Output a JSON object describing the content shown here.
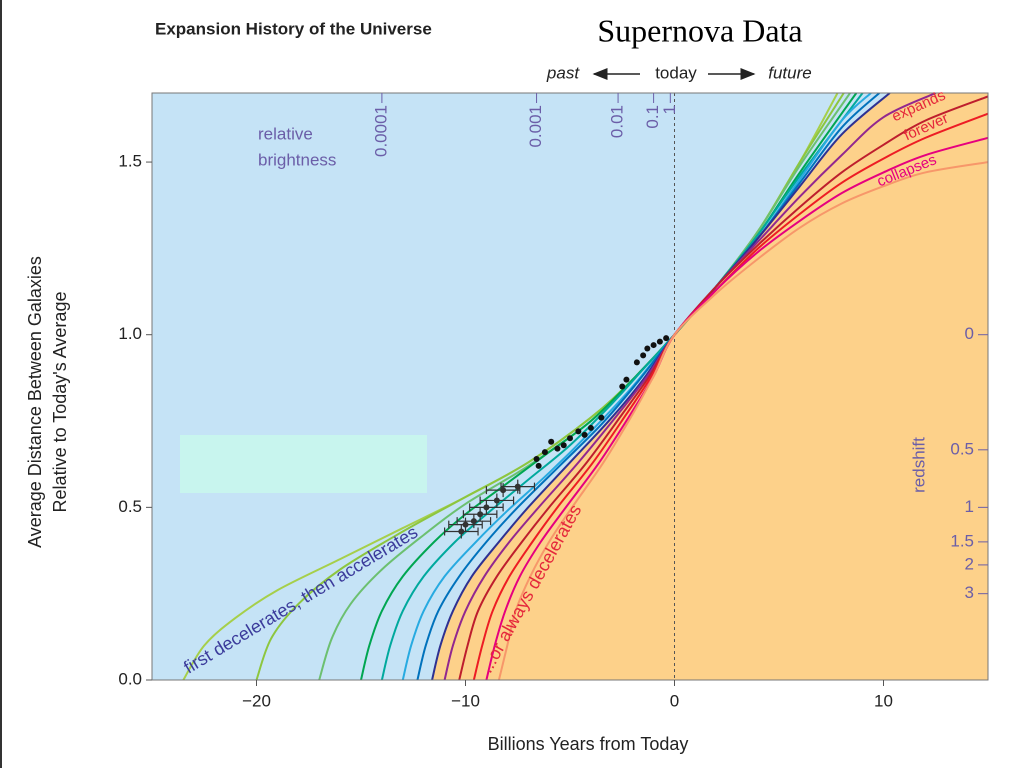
{
  "slide": {
    "title": "Supernova Data"
  },
  "chart_data": {
    "type": "line",
    "title": "Expansion History of the Universe",
    "xlabel": "Billions Years from Today",
    "ylabel": [
      "Average Distance Between Galaxies",
      "Relative to Today's Average"
    ],
    "xlim": [
      -25,
      15
    ],
    "ylim": [
      0,
      1.7
    ],
    "xticks": [
      {
        "value": -20,
        "label": "−20"
      },
      {
        "value": -10,
        "label": "−10"
      },
      0,
      10
    ],
    "yticks": [
      {
        "value": 0,
        "label": "0.0"
      },
      0.5,
      {
        "value": 1,
        "label": "1.0"
      },
      1.5
    ],
    "time_arrow": [
      "past",
      "today",
      "future"
    ],
    "annotations": {
      "accelerating": "first decelerates, then accelerates",
      "decelerating": "...or always decelerates",
      "expands": [
        "expands",
        "forever"
      ],
      "collapses": "collapses"
    },
    "brightness_axis": {
      "label": [
        "relative",
        "brightness"
      ],
      "ticks": [
        0.0001,
        0.001,
        0.01,
        0.1,
        1
      ],
      "tick_x": [
        -14,
        -6.6,
        -2.7,
        -1,
        -0.2
      ]
    },
    "redshift_axis": {
      "label": "redshift",
      "ticks": [
        0,
        0.5,
        1,
        1.5,
        2,
        3
      ]
    },
    "series": [
      {
        "color": "#a6cf4a",
        "x": [
          -23.5,
          -22.5,
          -21,
          -19,
          -16,
          -13,
          -10,
          -7,
          -4,
          -2,
          0,
          2,
          4,
          6,
          7.8
        ],
        "values": [
          0,
          0.1,
          0.18,
          0.26,
          0.35,
          0.44,
          0.53,
          0.63,
          0.76,
          0.87,
          1,
          1.14,
          1.3,
          1.5,
          1.7
        ]
      },
      {
        "color": "#8dc63f",
        "x": [
          -20,
          -19.3,
          -18,
          -16,
          -13,
          -10,
          -7,
          -4,
          -2,
          0,
          2,
          4,
          6,
          8.1
        ],
        "values": [
          0,
          0.12,
          0.22,
          0.32,
          0.43,
          0.53,
          0.63,
          0.76,
          0.87,
          1,
          1.14,
          1.3,
          1.5,
          1.7
        ]
      },
      {
        "color": "#6cc070",
        "x": [
          -17,
          -16.4,
          -15.5,
          -14,
          -12,
          -10,
          -7,
          -4,
          -2,
          0,
          2,
          4,
          6,
          8.4
        ],
        "values": [
          0,
          0.12,
          0.22,
          0.32,
          0.42,
          0.51,
          0.62,
          0.75,
          0.87,
          1,
          1.14,
          1.3,
          1.49,
          1.7
        ]
      },
      {
        "color": "#00a651",
        "x": [
          -15,
          -14.6,
          -14,
          -13,
          -11.5,
          -10,
          -8,
          -6,
          -4,
          -2,
          0,
          2,
          4,
          6,
          8.7
        ],
        "values": [
          0,
          0.1,
          0.2,
          0.3,
          0.4,
          0.48,
          0.57,
          0.66,
          0.75,
          0.87,
          1,
          1.14,
          1.29,
          1.47,
          1.7
        ]
      },
      {
        "color": "#00a99d",
        "x": [
          -14,
          -13.6,
          -13,
          -12,
          -10.5,
          -9,
          -7,
          -5,
          -3,
          -1.5,
          0,
          2,
          4,
          6,
          9
        ],
        "values": [
          0,
          0.1,
          0.2,
          0.3,
          0.4,
          0.48,
          0.58,
          0.68,
          0.8,
          0.9,
          1,
          1.14,
          1.29,
          1.46,
          1.7
        ]
      },
      {
        "color": "#27aae1",
        "x": [
          -13,
          -12.6,
          -12,
          -11,
          -9.5,
          -8,
          -6,
          -4,
          -2,
          0,
          2,
          4,
          6,
          8,
          9.4
        ],
        "values": [
          0,
          0.1,
          0.2,
          0.3,
          0.4,
          0.49,
          0.6,
          0.72,
          0.85,
          1,
          1.14,
          1.28,
          1.45,
          1.62,
          1.7
        ]
      },
      {
        "color": "#0072bc",
        "x": [
          -12.3,
          -11.9,
          -11.3,
          -10.3,
          -9,
          -7.5,
          -5.5,
          -3.5,
          -1.8,
          0,
          2,
          4,
          6,
          8,
          9.8
        ],
        "values": [
          0,
          0.1,
          0.2,
          0.3,
          0.4,
          0.5,
          0.62,
          0.74,
          0.86,
          1,
          1.14,
          1.28,
          1.44,
          1.6,
          1.7
        ]
      },
      {
        "color": "#2e3192",
        "x": [
          -11.6,
          -11.2,
          -10.6,
          -9.7,
          -8.4,
          -7,
          -5,
          -3,
          -1.5,
          0,
          2,
          4,
          6,
          8,
          10.3
        ],
        "values": [
          0,
          0.1,
          0.2,
          0.3,
          0.4,
          0.5,
          0.63,
          0.76,
          0.87,
          1,
          1.14,
          1.28,
          1.43,
          1.58,
          1.7
        ]
      },
      {
        "color": "#92278f",
        "x": [
          -11,
          -10.6,
          -10,
          -9.1,
          -7.9,
          -6.5,
          -4.6,
          -2.7,
          -1.3,
          0,
          2,
          4,
          6,
          8,
          10,
          12.5
        ],
        "values": [
          0,
          0.1,
          0.2,
          0.3,
          0.4,
          0.5,
          0.63,
          0.77,
          0.88,
          1,
          1.14,
          1.27,
          1.4,
          1.52,
          1.63,
          1.7
        ]
      },
      {
        "color": "#be1e2d",
        "x": [
          -10.3,
          -9.9,
          -9.4,
          -8.5,
          -7.3,
          -6,
          -4.2,
          -2.5,
          -1.2,
          0,
          2,
          4,
          6,
          8,
          10,
          12,
          15
        ],
        "values": [
          0,
          0.1,
          0.2,
          0.3,
          0.4,
          0.5,
          0.63,
          0.77,
          0.88,
          1,
          1.14,
          1.26,
          1.37,
          1.47,
          1.55,
          1.62,
          1.69
        ]
      },
      {
        "color": "#ed1c24",
        "x": [
          -9.6,
          -9.2,
          -8.7,
          -7.9,
          -6.8,
          -5.6,
          -3.9,
          -2.3,
          -1.1,
          0,
          2,
          4,
          6,
          8,
          10,
          12,
          15
        ],
        "values": [
          0,
          0.1,
          0.2,
          0.3,
          0.4,
          0.5,
          0.63,
          0.77,
          0.88,
          1,
          1.13,
          1.25,
          1.35,
          1.44,
          1.51,
          1.57,
          1.64
        ]
      },
      {
        "color": "#e6007e",
        "x": [
          -9,
          -8.6,
          -8.1,
          -7.4,
          -6.4,
          -5.2,
          -3.6,
          -2.1,
          -1,
          0,
          2,
          4,
          6,
          8,
          10,
          12,
          15
        ],
        "values": [
          0,
          0.1,
          0.2,
          0.3,
          0.4,
          0.5,
          0.63,
          0.77,
          0.88,
          1,
          1.13,
          1.24,
          1.33,
          1.41,
          1.47,
          1.52,
          1.57
        ]
      },
      {
        "color": "#f7976a",
        "x": [
          -8.4,
          -8,
          -7.6,
          -6.9,
          -6,
          -4.9,
          -3.4,
          -2,
          -1,
          0,
          2,
          4,
          6,
          8,
          10,
          12,
          15
        ],
        "values": [
          0,
          0.1,
          0.2,
          0.3,
          0.4,
          0.5,
          0.63,
          0.77,
          0.88,
          1,
          1.12,
          1.22,
          1.31,
          1.38,
          1.43,
          1.47,
          1.5
        ]
      }
    ],
    "points": {
      "color": "#111111",
      "x": [
        -0.4,
        -0.7,
        -1,
        -1.3,
        -1.5,
        -1.8,
        -2.3,
        -2.5,
        -3.5,
        -4,
        -4.3,
        -4.6,
        -5,
        -5.3,
        -5.6,
        -5.9,
        -6.2,
        -6.5,
        -6.6
      ],
      "values": [
        0.99,
        0.98,
        0.97,
        0.96,
        0.94,
        0.92,
        0.87,
        0.85,
        0.76,
        0.73,
        0.71,
        0.72,
        0.7,
        0.68,
        0.67,
        0.69,
        0.66,
        0.62,
        0.64
      ]
    },
    "error_points": {
      "color": "#333333",
      "x": [
        -7.5,
        -8.2,
        -8.5,
        -9,
        -9.3,
        -9.6,
        -10,
        -10.2
      ],
      "values": [
        0.56,
        0.55,
        0.52,
        0.5,
        0.48,
        0.46,
        0.45,
        0.43
      ],
      "x_errors": [
        0.8,
        0.8,
        0.8,
        0.8,
        0.8,
        0.8,
        0.8,
        0.8
      ]
    }
  }
}
